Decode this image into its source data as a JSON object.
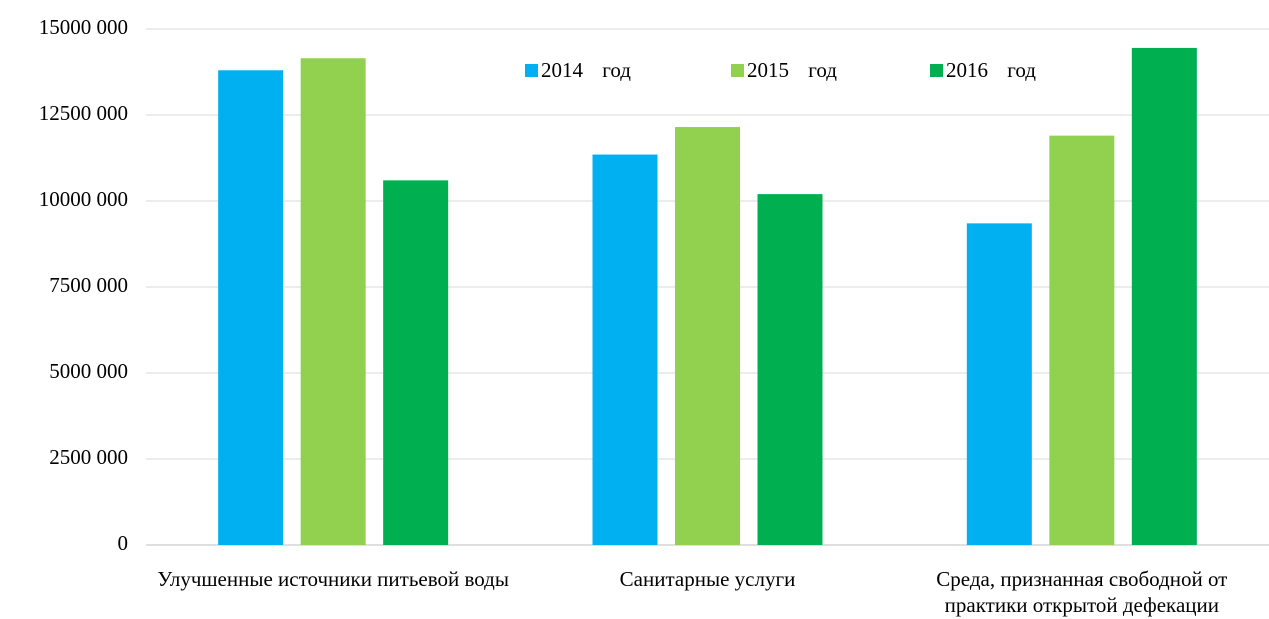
{
  "chart_data": {
    "type": "bar",
    "categories": [
      "Улучшенные источники питьевой воды",
      "Санитарные услуги",
      "Среда, признанная свободной от практики открытой дефекации"
    ],
    "series": [
      {
        "name": "2014 год",
        "color": "#00b0f0",
        "values": [
          13800000,
          11350000,
          9350000
        ]
      },
      {
        "name": "2015 год",
        "color": "#92d050",
        "values": [
          14150000,
          12150000,
          11900000
        ]
      },
      {
        "name": "2016 год",
        "color": "#00b050",
        "values": [
          10600000,
          10200000,
          14450000
        ]
      }
    ],
    "ylim": [
      0,
      15000000
    ],
    "yticks": [
      0,
      {
        "value": 2500000,
        "label": "2500 000"
      },
      {
        "value": 5000000,
        "label": "5000 000"
      },
      {
        "value": 7500000,
        "label": "7500 000"
      },
      {
        "value": 10000000,
        "label": "10000 000"
      },
      {
        "value": 12500000,
        "label": "12500 000"
      },
      {
        "value": 15000000,
        "label": "15000 000"
      }
    ],
    "grid": true,
    "legend": "top"
  }
}
